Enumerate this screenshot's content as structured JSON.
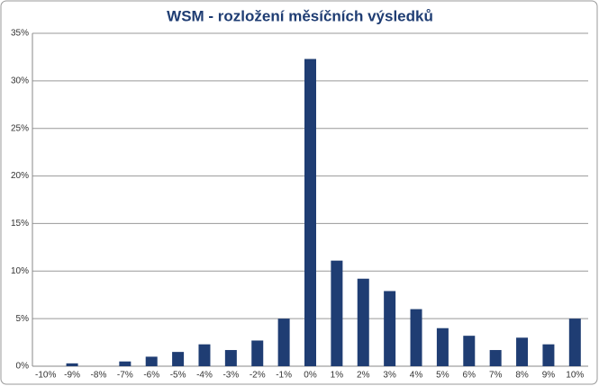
{
  "chart_data": {
    "type": "bar",
    "title": "WSM - rozložení měsíčních výsledků",
    "categories": [
      "-10%",
      "-9%",
      "-8%",
      "-7%",
      "-6%",
      "-5%",
      "-4%",
      "-3%",
      "-2%",
      "-1%",
      "0%",
      "1%",
      "2%",
      "3%",
      "4%",
      "5%",
      "6%",
      "7%",
      "8%",
      "9%",
      "10%"
    ],
    "values": [
      0,
      0.3,
      0,
      0.5,
      1.0,
      1.5,
      2.3,
      1.7,
      2.7,
      5.0,
      32.3,
      11.1,
      9.2,
      7.9,
      6.0,
      4.0,
      3.2,
      1.7,
      3.0,
      2.3,
      5.0
    ],
    "color": "#1f3d73",
    "ylim": [
      0,
      35
    ],
    "yticks": [
      {
        "value": 0,
        "label": "0%"
      },
      {
        "value": 5,
        "label": "5%"
      },
      {
        "value": 10,
        "label": "10%"
      },
      {
        "value": 15,
        "label": "15%"
      },
      {
        "value": 20,
        "label": "20%"
      },
      {
        "value": 25,
        "label": "25%"
      },
      {
        "value": 30,
        "label": "30%"
      },
      {
        "value": 35,
        "label": "35%"
      }
    ],
    "grid": true
  }
}
